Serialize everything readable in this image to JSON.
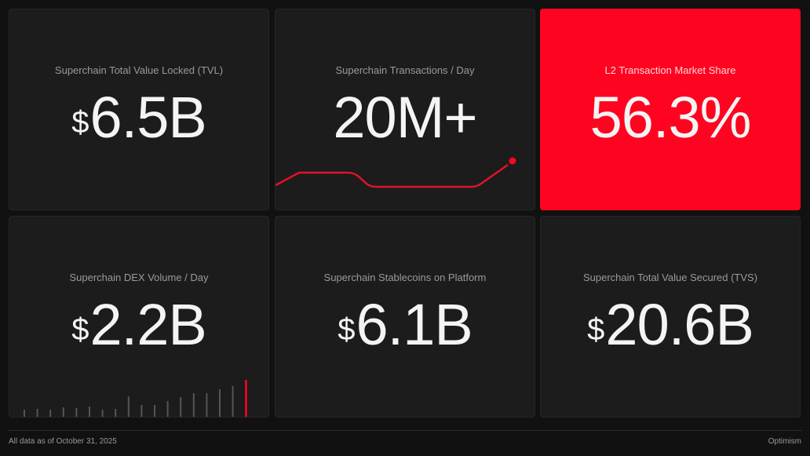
{
  "colors": {
    "accent": "#ff0420",
    "card": "#1c1c1c",
    "background": "#111111"
  },
  "cards": [
    {
      "label": "Superchain Total Value Locked (TVL)",
      "currency": "$",
      "value": "6.5B"
    },
    {
      "label": "Superchain Transactions / Day",
      "currency": "",
      "value": "20M+"
    },
    {
      "label": "L2 Transaction Market Share",
      "currency": "",
      "value": "56.3%"
    },
    {
      "label": "Superchain DEX Volume / Day",
      "currency": "$",
      "value": "2.2B"
    },
    {
      "label": "Superchain Stablecoins on Platform",
      "currency": "$",
      "value": "6.1B"
    },
    {
      "label": "Superchain Total Value Secured (TVS)",
      "currency": "$",
      "value": "20.6B"
    }
  ],
  "dex_sparkline": [
    10,
    11,
    10,
    13,
    12,
    14,
    10,
    11,
    27,
    16,
    16,
    21,
    26,
    31,
    31,
    36,
    40,
    48
  ],
  "footer": {
    "note": "All data as of October 31, 2025",
    "brand": "Optimism"
  }
}
